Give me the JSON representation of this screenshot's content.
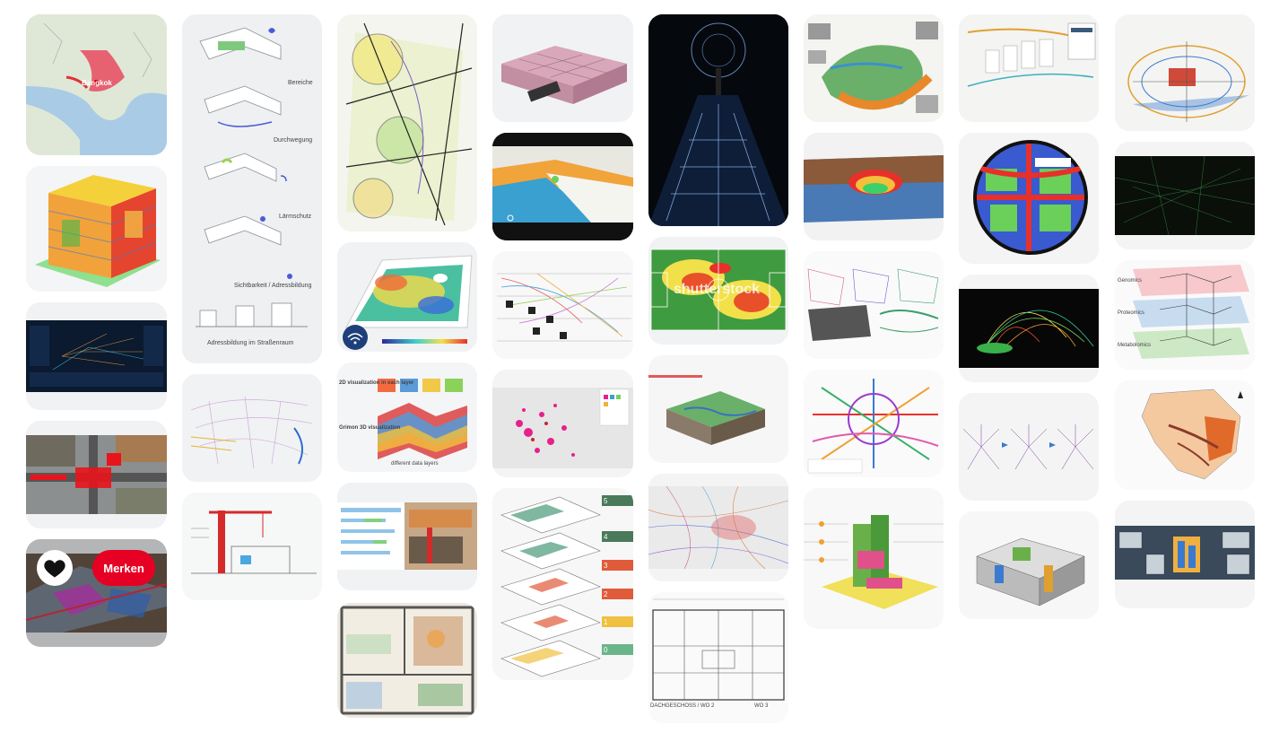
{
  "pins": {
    "map_asia": {
      "labels": [
        "Bangkok"
      ]
    },
    "layers_diagram": {
      "labels": [
        "Bereiche",
        "Durchwegung",
        "Lärmschutz",
        "Sichtbarkeit / Adressbildung",
        "Adressbildung im Straßenraum"
      ]
    },
    "floor_3d": {
      "labels": [
        "2D visualization in each layer",
        "Grimon 3D visualization",
        "different data layers"
      ]
    },
    "football_heatmap": {
      "watermark": "shutterstock"
    },
    "floorplan_bw": {
      "labels": [
        "DACHGESCHOSS / WO 2",
        "WO 3"
      ]
    },
    "multilayer_omics": {
      "labels": [
        "Genomics",
        "Proteomics",
        "Metabolomics"
      ]
    },
    "stacked_floors": {
      "numbers": [
        "5",
        "4",
        "3",
        "2",
        "1",
        "0"
      ]
    },
    "aerial_overlay": {
      "save_label": "Merken",
      "heart_icon": "heart-icon"
    }
  }
}
